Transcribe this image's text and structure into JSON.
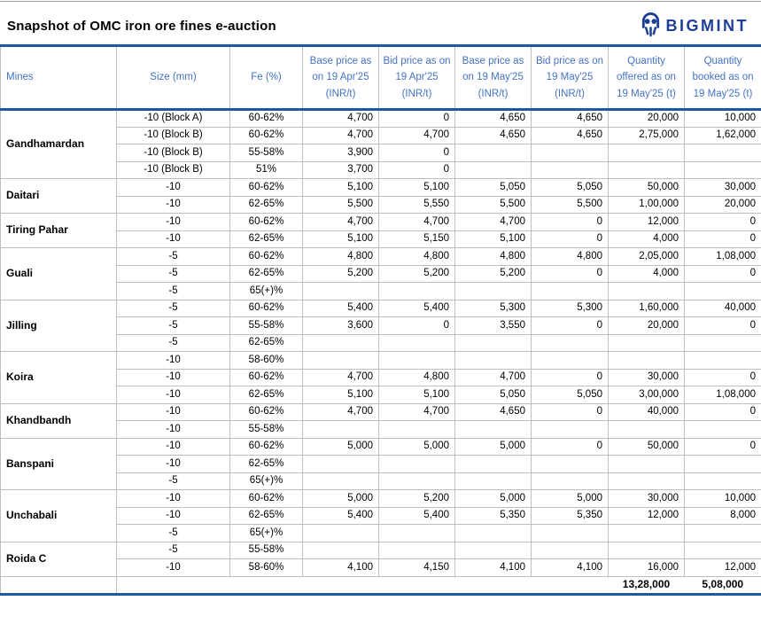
{
  "page": {
    "title": "Snapshot of OMC iron ore fines e-auction"
  },
  "logo": {
    "brand": "BIGMINT",
    "color": "#1d3f96"
  },
  "colors": {
    "accent_border": "#1b5aa3",
    "grid_line": "#bfbfbf",
    "header_text": "#4472c4"
  },
  "table": {
    "columns": [
      "Mines",
      "Size (mm)",
      "Fe (%)",
      "Base price as\non 19 Apr'25\n(INR/t)",
      "Bid price as on\n19 Apr'25\n(INR/t)",
      "Base price as\non 19 May'25\n(INR/t)",
      "Bid price as on\n19 May'25\n(INR/t)",
      "Quantity\noffered as on\n19 May'25 (t)",
      "Quantity\nbooked as on\n19 May'25 (t)"
    ],
    "groups": [
      {
        "mine": "Gandhamardan",
        "rows": [
          [
            "-10 (Block A)",
            "60-62%",
            "4,700",
            "0",
            "4,650",
            "4,650",
            "20,000",
            "10,000"
          ],
          [
            "-10 (Block B)",
            "60-62%",
            "4,700",
            "4,700",
            "4,650",
            "4,650",
            "2,75,000",
            "1,62,000"
          ],
          [
            "-10 (Block B)",
            "55-58%",
            "3,900",
            "0",
            "",
            "",
            "",
            ""
          ],
          [
            "-10 (Block B)",
            "51%",
            "3,700",
            "0",
            "",
            "",
            "",
            ""
          ]
        ]
      },
      {
        "mine": "Daitari",
        "rows": [
          [
            "-10",
            "60-62%",
            "5,100",
            "5,100",
            "5,050",
            "5,050",
            "50,000",
            "30,000"
          ],
          [
            "-10",
            "62-65%",
            "5,500",
            "5,550",
            "5,500",
            "5,500",
            "1,00,000",
            "20,000"
          ]
        ]
      },
      {
        "mine": "Tiring Pahar",
        "rows": [
          [
            "-10",
            "60-62%",
            "4,700",
            "4,700",
            "4,700",
            "0",
            "12,000",
            "0"
          ],
          [
            "-10",
            "62-65%",
            "5,100",
            "5,150",
            "5,100",
            "0",
            "4,000",
            "0"
          ]
        ]
      },
      {
        "mine": "Guali",
        "rows": [
          [
            "-5",
            "60-62%",
            "4,800",
            "4,800",
            "4,800",
            "4,800",
            "2,05,000",
            "1,08,000"
          ],
          [
            "-5",
            "62-65%",
            "5,200",
            "5,200",
            "5,200",
            "0",
            "4,000",
            "0"
          ],
          [
            "-5",
            "65(+)%",
            "",
            "",
            "",
            "",
            "",
            ""
          ]
        ]
      },
      {
        "mine": "Jilling",
        "rows": [
          [
            "-5",
            "60-62%",
            "5,400",
            "5,400",
            "5,300",
            "5,300",
            "1,60,000",
            "40,000"
          ],
          [
            "-5",
            "55-58%",
            "3,600",
            "0",
            "3,550",
            "0",
            "20,000",
            "0"
          ],
          [
            "-5",
            "62-65%",
            "",
            "",
            "",
            "",
            "",
            ""
          ]
        ]
      },
      {
        "mine": "Koira",
        "rows": [
          [
            "-10",
            "58-60%",
            "",
            "",
            "",
            "",
            "",
            ""
          ],
          [
            "-10",
            "60-62%",
            "4,700",
            "4,800",
            "4,700",
            "0",
            "30,000",
            "0"
          ],
          [
            "-10",
            "62-65%",
            "5,100",
            "5,100",
            "5,050",
            "5,050",
            "3,00,000",
            "1,08,000"
          ]
        ]
      },
      {
        "mine": "Khandbandh",
        "rows": [
          [
            "-10",
            "60-62%",
            "4,700",
            "4,700",
            "4,650",
            "0",
            "40,000",
            "0"
          ],
          [
            "-10",
            "55-58%",
            "",
            "",
            "",
            "",
            "",
            ""
          ]
        ]
      },
      {
        "mine": "Banspani",
        "rows": [
          [
            "-10",
            "60-62%",
            "5,000",
            "5,000",
            "5,000",
            "0",
            "50,000",
            "0"
          ],
          [
            "-10",
            "62-65%",
            "",
            "",
            "",
            "",
            "",
            ""
          ],
          [
            "-5",
            "65(+)%",
            "",
            "",
            "",
            "",
            "",
            ""
          ]
        ]
      },
      {
        "mine": "Unchabali",
        "rows": [
          [
            "-10",
            "60-62%",
            "5,000",
            "5,200",
            "5,000",
            "5,000",
            "30,000",
            "10,000"
          ],
          [
            "-10",
            "62-65%",
            "5,400",
            "5,400",
            "5,350",
            "5,350",
            "12,000",
            "8,000"
          ],
          [
            "-5",
            "65(+)%",
            "",
            "",
            "",
            "",
            "",
            ""
          ]
        ]
      },
      {
        "mine": "Roida C",
        "rows": [
          [
            "-5",
            "55-58%",
            "",
            "",
            "",
            "",
            "",
            ""
          ],
          [
            "-10",
            "58-60%",
            "4,100",
            "4,150",
            "4,100",
            "4,100",
            "16,000",
            "12,000"
          ]
        ]
      }
    ],
    "total": {
      "qty_offered": "13,28,000",
      "qty_booked": "5,08,000"
    }
  }
}
